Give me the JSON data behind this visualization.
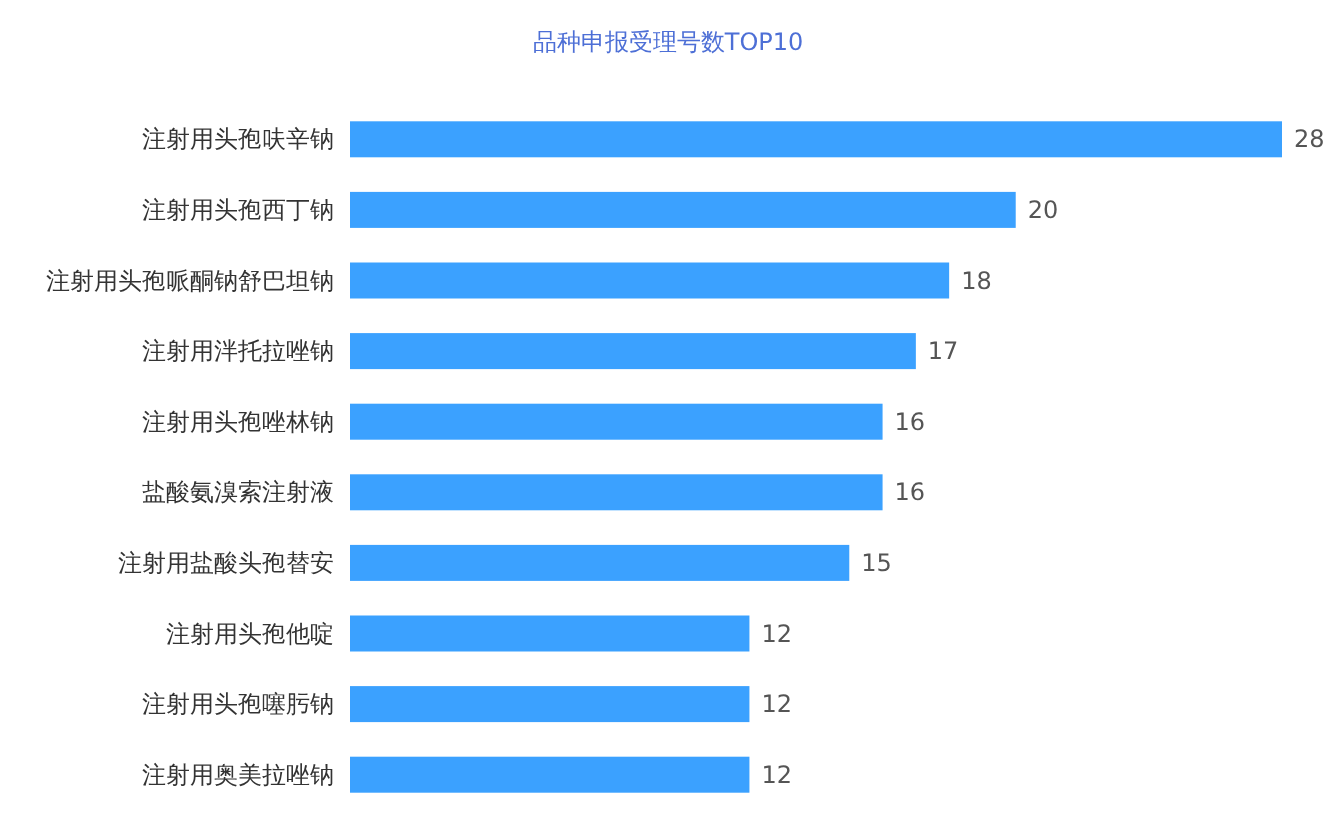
{
  "chart_data": {
    "type": "bar",
    "orientation": "horizontal",
    "title": "品种申报受理号数TOP10",
    "categories": [
      "注射用头孢呋辛钠",
      "注射用头孢西丁钠",
      "注射用头孢哌酮钠舒巴坦钠",
      "注射用泮托拉唑钠",
      "注射用头孢唑林钠",
      "盐酸氨溴索注射液",
      "注射用盐酸头孢替安",
      "注射用头孢他啶",
      "注射用头孢噻肟钠",
      "注射用奥美拉唑钠"
    ],
    "values": [
      28,
      20,
      18,
      17,
      16,
      16,
      15,
      12,
      12,
      12
    ],
    "color": "#3ba1ff",
    "data_labels": true
  }
}
